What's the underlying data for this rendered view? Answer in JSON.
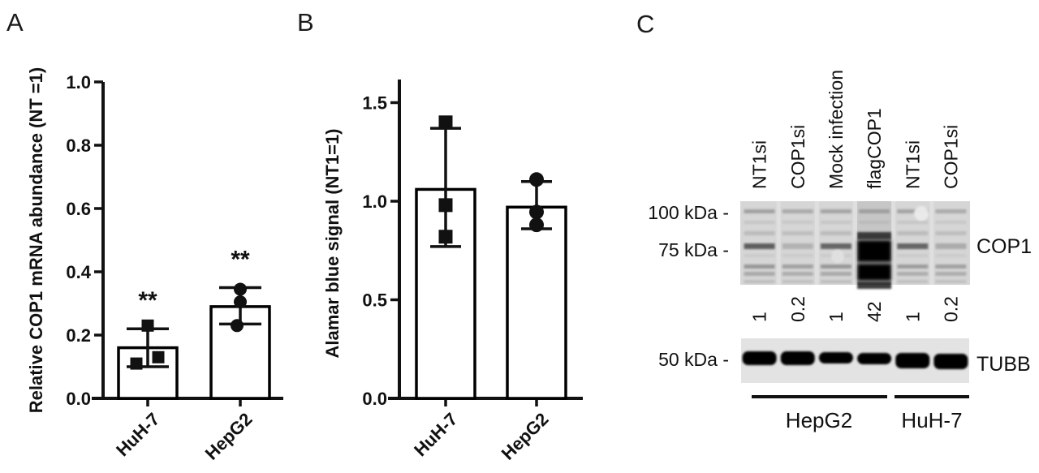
{
  "figure": {
    "panel_labels": {
      "A": "A",
      "B": "B",
      "C": "C"
    }
  },
  "chart_data": [
    {
      "panel": "A",
      "type": "bar",
      "title": "",
      "ylabel": "Relative COP1 mRNA abundance (NT =1)",
      "xlabel": "",
      "categories": [
        "HuH-7",
        "HepG2"
      ],
      "values": [
        0.16,
        0.29
      ],
      "error_low": [
        0.1,
        0.235
      ],
      "error_high": [
        0.22,
        0.35
      ],
      "points": [
        [
          0.23,
          0.11,
          0.13
        ],
        [
          0.345,
          0.305,
          0.23
        ]
      ],
      "point_marker": [
        "square",
        "circle"
      ],
      "significance": [
        "**",
        "**"
      ],
      "yticks": [
        "0.0",
        "0.2",
        "0.4",
        "0.6",
        "0.8",
        "1.0"
      ],
      "ylim": [
        0,
        1.0
      ],
      "grid": false,
      "legend": "none",
      "bar_fill": "#ffffff",
      "stroke_color": "#000000"
    },
    {
      "panel": "B",
      "type": "bar",
      "title": "",
      "ylabel": "Alamar blue signal  (NT1=1)",
      "xlabel": "",
      "categories": [
        "HuH-7",
        "HepG2"
      ],
      "values": [
        1.06,
        0.97
      ],
      "error_low": [
        0.77,
        0.86
      ],
      "error_high": [
        1.37,
        1.1
      ],
      "points": [
        [
          1.4,
          0.98,
          0.82
        ],
        [
          1.11,
          0.945,
          0.88
        ]
      ],
      "point_marker": [
        "square",
        "circle"
      ],
      "significance": [
        "",
        ""
      ],
      "yticks": [
        "0.0",
        "0.5",
        "1.0",
        "1.5"
      ],
      "ylim": [
        0,
        1.6
      ],
      "grid": false,
      "legend": "none",
      "bar_fill": "#ffffff",
      "stroke_color": "#000000"
    }
  ],
  "panel_c": {
    "lane_labels": [
      "NT1si",
      "COP1si",
      "Mock infection",
      "flagCOP1",
      "NT1si",
      "COP1si"
    ],
    "mw_markers": [
      {
        "label": "100 kDa -",
        "blot": "COP1"
      },
      {
        "label": "75 kDa -",
        "blot": "COP1"
      },
      {
        "label": "50 kDa -",
        "blot": "TUBB"
      }
    ],
    "quant_values": [
      "1",
      "0.2",
      "1",
      "42",
      "1",
      "0.2"
    ],
    "blot_labels": [
      "COP1",
      "TUBB"
    ],
    "group_labels": [
      "HepG2",
      "HuH-7"
    ],
    "group_lane_spans": [
      [
        1,
        4
      ],
      [
        5,
        6
      ]
    ],
    "colors": {
      "blot1_bg": "#d6d6d6",
      "blot2_bg": "#e3e3e3",
      "band_dark": "#000000",
      "text": "#111111"
    }
  }
}
